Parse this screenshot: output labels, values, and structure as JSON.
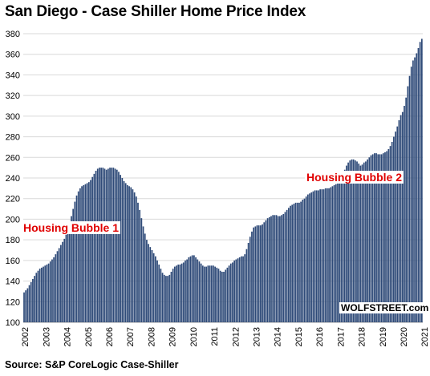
{
  "title": "San Diego - Case Shiller Home Price Index",
  "source": "Source: S&P CoreLogic Case-Shiller",
  "watermark": "WOLFSTREET.com",
  "annotations": [
    "Housing Bubble 1",
    "Housing Bubble 2"
  ],
  "colors": {
    "bar": "#2e4a78",
    "grid": "#d9d9d9",
    "annotation": "#e00000"
  },
  "chart_data": {
    "type": "bar",
    "title": "San Diego - Case Shiller Home Price Index",
    "xlabel": "",
    "ylabel": "",
    "ylim": [
      100,
      380
    ],
    "yticks": [
      100,
      120,
      140,
      160,
      180,
      200,
      220,
      240,
      260,
      280,
      300,
      320,
      340,
      360,
      380
    ],
    "xticks": [
      "2002",
      "2003",
      "2004",
      "2005",
      "2006",
      "2007",
      "2008",
      "2009",
      "2010",
      "2011",
      "2012",
      "2013",
      "2014",
      "2015",
      "2016",
      "2017",
      "2018",
      "2019",
      "2020",
      "2021"
    ],
    "grid": true,
    "frequency": "monthly",
    "start": "2002-01",
    "values": [
      129,
      131,
      133,
      136,
      139,
      142,
      145,
      148,
      150,
      152,
      153,
      154,
      155,
      156,
      157,
      159,
      161,
      163,
      166,
      169,
      172,
      175,
      178,
      181,
      185,
      190,
      196,
      203,
      210,
      217,
      223,
      227,
      230,
      232,
      233,
      234,
      235,
      236,
      238,
      241,
      244,
      247,
      249,
      250,
      250,
      250,
      249,
      248,
      249,
      250,
      250,
      250,
      249,
      248,
      246,
      243,
      240,
      237,
      235,
      233,
      232,
      231,
      229,
      226,
      222,
      216,
      209,
      201,
      193,
      186,
      180,
      176,
      173,
      170,
      167,
      164,
      160,
      156,
      152,
      148,
      146,
      145,
      145,
      146,
      149,
      152,
      154,
      155,
      156,
      156,
      157,
      158,
      160,
      161,
      163,
      164,
      165,
      165,
      163,
      161,
      159,
      157,
      155,
      154,
      154,
      155,
      155,
      155,
      155,
      154,
      153,
      152,
      150,
      149,
      149,
      151,
      153,
      155,
      157,
      158,
      160,
      161,
      162,
      163,
      164,
      164,
      166,
      171,
      177,
      183,
      188,
      192,
      193,
      194,
      194,
      194,
      195,
      197,
      199,
      201,
      202,
      203,
      204,
      204,
      204,
      203,
      203,
      204,
      205,
      207,
      209,
      211,
      213,
      214,
      215,
      216,
      216,
      216,
      217,
      219,
      220,
      222,
      224,
      225,
      226,
      227,
      228,
      228,
      228,
      229,
      229,
      229,
      230,
      230,
      230,
      231,
      232,
      233,
      234,
      236,
      237,
      240,
      243,
      248,
      252,
      255,
      257,
      258,
      258,
      257,
      256,
      254,
      252,
      253,
      255,
      256,
      258,
      260,
      262,
      263,
      264,
      264,
      263,
      263,
      263,
      264,
      265,
      266,
      268,
      271,
      275,
      280,
      285,
      290,
      296,
      301,
      304,
      310,
      318,
      329,
      339,
      348,
      354,
      357,
      361,
      366,
      372,
      375
    ]
  }
}
